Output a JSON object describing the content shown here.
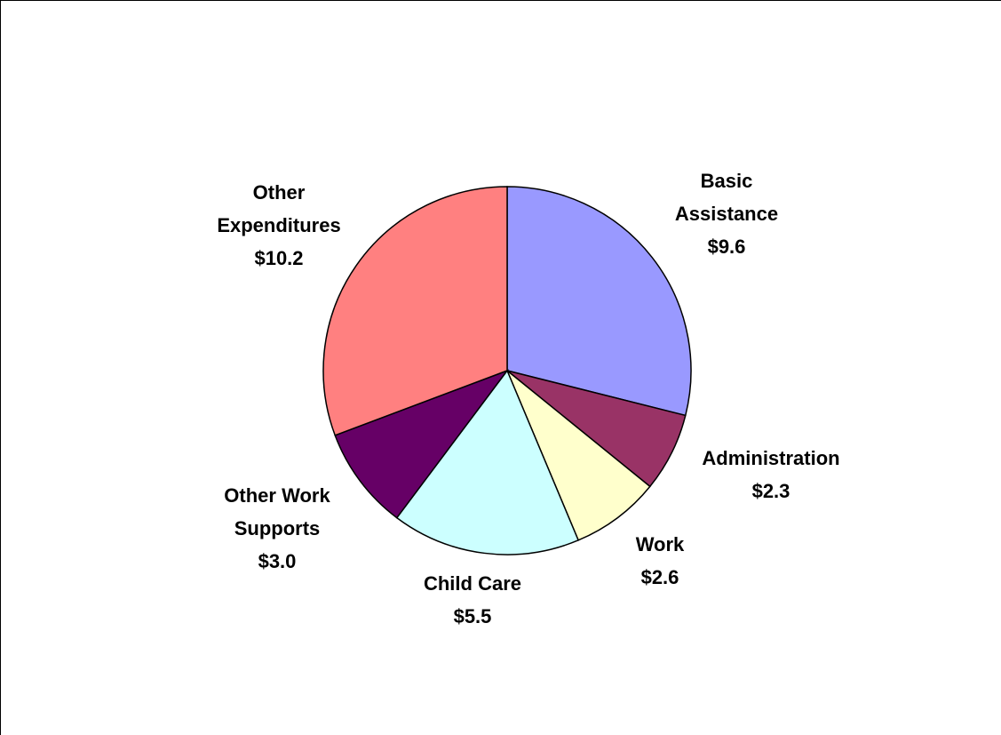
{
  "chart_data": {
    "type": "pie",
    "title": "",
    "start_angle_deg": 0,
    "direction": "clockwise",
    "legend": "none",
    "slices": [
      {
        "name": "Basic Assistance",
        "label_lines": [
          "Basic",
          "Assistance"
        ],
        "value_label": "$9.6",
        "value": 9.6,
        "color": "#9999FF"
      },
      {
        "name": "Administration",
        "label_lines": [
          "Administration"
        ],
        "value_label": "$2.3",
        "value": 2.3,
        "color": "#993366"
      },
      {
        "name": "Work",
        "label_lines": [
          "Work"
        ],
        "value_label": "$2.6",
        "value": 2.6,
        "color": "#FFFFCC"
      },
      {
        "name": "Child Care",
        "label_lines": [
          "Child Care"
        ],
        "value_label": "$5.5",
        "value": 5.5,
        "color": "#CCFFFF"
      },
      {
        "name": "Other Work Supports",
        "label_lines": [
          "Other Work",
          "Supports"
        ],
        "value_label": "$3.0",
        "value": 3.0,
        "color": "#660066"
      },
      {
        "name": "Other Expenditures",
        "label_lines": [
          "Other",
          "Expenditures"
        ],
        "value_label": "$10.2",
        "value": 10.2,
        "color": "#FF8080"
      }
    ]
  }
}
